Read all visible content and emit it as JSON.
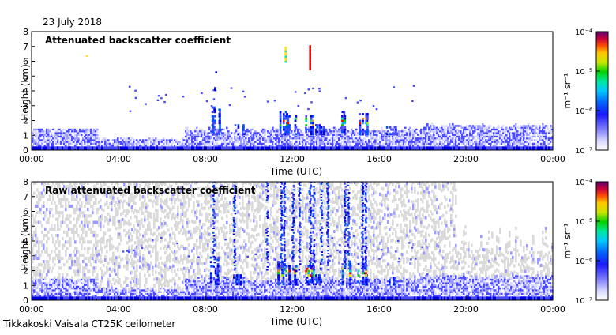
{
  "date": "23 July 2018",
  "footer": "Tikkakoski Vaisala CT25K ceilometer",
  "chart_data": [
    {
      "type": "heatmap",
      "title": "Attenuated backscatter coefficient",
      "xlabel": "Time (UTC)",
      "ylabel": "Height (km)",
      "x_ticks": [
        "00:00",
        "04:00",
        "08:00",
        "12:00",
        "16:00",
        "20:00",
        "00:00"
      ],
      "y_ticks": [
        "0",
        "1",
        "2",
        "3",
        "4",
        "5",
        "6",
        "7",
        "8"
      ],
      "xlim_hours": [
        0,
        24
      ],
      "ylim_km": [
        0,
        8
      ],
      "colorbar": {
        "label": "m⁻¹ sr⁻¹",
        "scale": "log",
        "range": [
          1e-07,
          0.0001
        ],
        "tick_labels": [
          "10⁻⁴",
          "10⁻⁵",
          "10⁻⁶",
          "10⁻⁷"
        ]
      }
    },
    {
      "type": "heatmap",
      "title": "Raw attenuated backscatter coefficient",
      "xlabel": "Time (UTC)",
      "ylabel": "Height (km)",
      "x_ticks": [
        "00:00",
        "04:00",
        "08:00",
        "12:00",
        "16:00",
        "20:00",
        "00:00"
      ],
      "y_ticks": [
        "0",
        "1",
        "2",
        "3",
        "4",
        "5",
        "6",
        "7",
        "8"
      ],
      "xlim_hours": [
        0,
        24
      ],
      "ylim_km": [
        0,
        8
      ],
      "colorbar": {
        "label": "m⁻¹ sr⁻¹",
        "scale": "log",
        "range": [
          1e-07,
          0.0001
        ],
        "tick_labels": [
          "10⁻⁴",
          "10⁻⁵",
          "10⁻⁶",
          "10⁻⁷"
        ]
      }
    }
  ],
  "colormap": [
    "#ffffff",
    "#d6d6ff",
    "#9a9aff",
    "#4848ff",
    "#0000e6",
    "#0050ff",
    "#00b4ff",
    "#00e6b4",
    "#00d200",
    "#b4e600",
    "#ffe600",
    "#ff9600",
    "#ff0000",
    "#b4005a",
    "#64006e"
  ]
}
